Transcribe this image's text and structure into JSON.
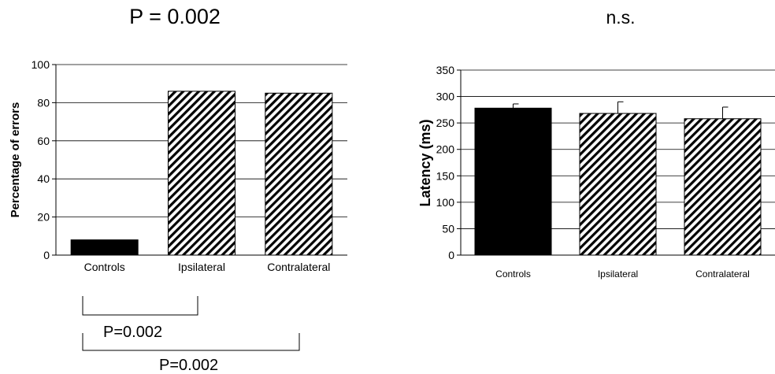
{
  "chart_data": [
    {
      "type": "bar",
      "title": "P = 0.002",
      "ylabel": "Percentage of errors",
      "xlabel": "",
      "categories": [
        "Controls",
        "Ipsilateral",
        "Contralateral"
      ],
      "values": [
        8,
        86,
        85
      ],
      "patterns": [
        "solid",
        "hatched",
        "hatched"
      ],
      "ylim": [
        0,
        100
      ],
      "yticks": [
        0,
        20,
        40,
        60,
        80,
        100
      ],
      "grid": true,
      "comparisons": [
        {
          "from": "Controls",
          "to": "Ipsilateral",
          "label": "P=0.002"
        },
        {
          "from": "Controls",
          "to": "Contralateral",
          "label": "P=0.002"
        }
      ]
    },
    {
      "type": "bar",
      "title": "n.s.",
      "ylabel": "Latency (ms)",
      "xlabel": "",
      "categories": [
        "Controls",
        "Ipsilateral",
        "Contralateral"
      ],
      "values": [
        278,
        268,
        258
      ],
      "errors": [
        8,
        22,
        22
      ],
      "patterns": [
        "solid",
        "hatched",
        "hatched"
      ],
      "ylim": [
        0,
        350
      ],
      "yticks": [
        0,
        50,
        100,
        150,
        200,
        250,
        300,
        350
      ],
      "grid": true
    }
  ]
}
